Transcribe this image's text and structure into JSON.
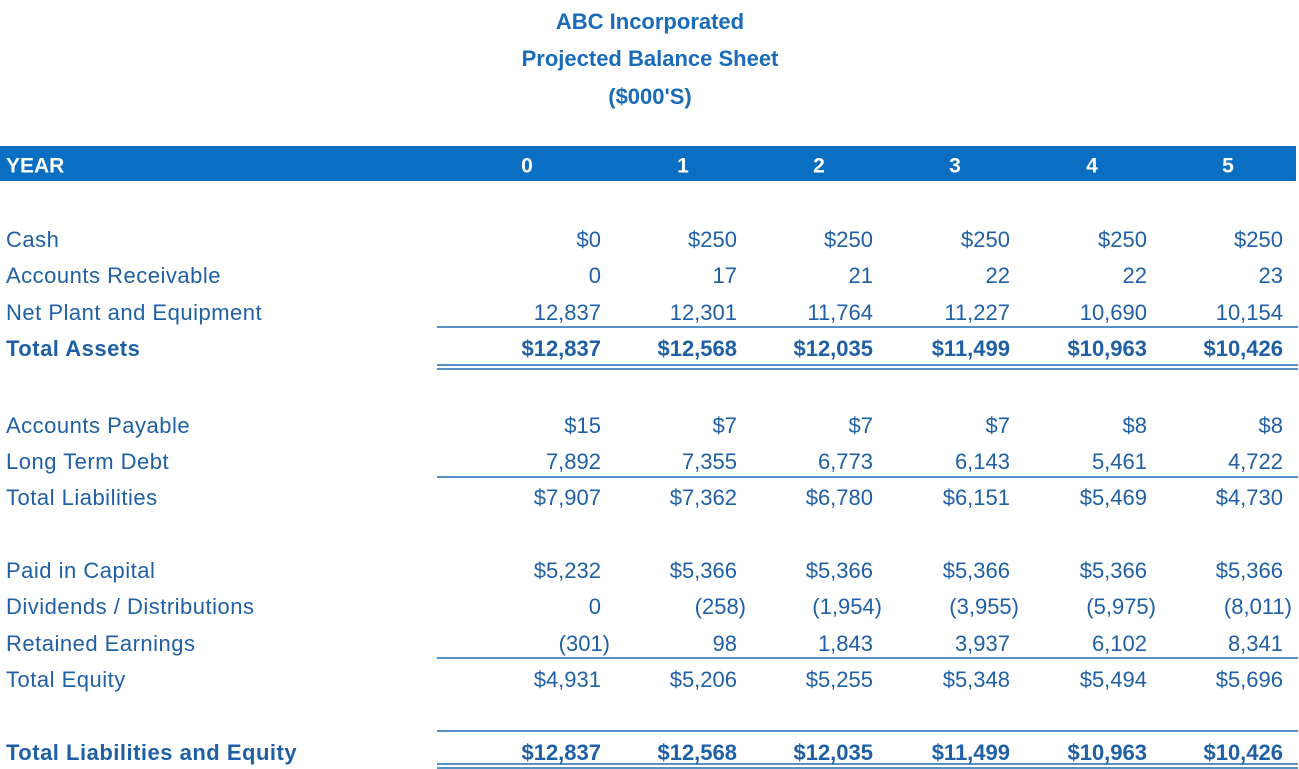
{
  "header": {
    "title": "ABC Incorporated",
    "subtitle": "Projected Balance Sheet",
    "units": "($000'S)"
  },
  "table": {
    "columns": [
      "YEAR",
      "0",
      "1",
      "2",
      "3",
      "4",
      "5"
    ],
    "rows": [
      [
        "Cash",
        "$0",
        "$250",
        "$250",
        "$250",
        "$250",
        "$250"
      ],
      [
        "Accounts Receivable",
        "0",
        "17",
        "21",
        "22",
        "22",
        "23"
      ],
      [
        "Net Plant and Equipment",
        "12,837",
        "12,301",
        "11,764",
        "11,227",
        "10,690",
        "10,154"
      ],
      [
        "Total Assets",
        "$12,837",
        "$12,568",
        "$12,035",
        "$11,499",
        "$10,963",
        "$10,426"
      ],
      [
        "Accounts Payable",
        "$15",
        "$7",
        "$7",
        "$7",
        "$8",
        "$8"
      ],
      [
        "Long Term Debt",
        "7,892",
        "7,355",
        "6,773",
        "6,143",
        "5,461",
        "4,722"
      ],
      [
        "Total Liabilities",
        "$7,907",
        "$7,362",
        "$6,780",
        "$6,151",
        "$5,469",
        "$4,730"
      ],
      [
        "Paid in Capital",
        "$5,232",
        "$5,366",
        "$5,366",
        "$5,366",
        "$5,366",
        "$5,366"
      ],
      [
        "Dividends / Distributions",
        "0",
        "(258)",
        "(1,954)",
        "(3,955)",
        "(5,975)",
        "(8,011)"
      ],
      [
        "Retained Earnings",
        "(301)",
        "98",
        "1,843",
        "3,937",
        "6,102",
        "8,341"
      ],
      [
        "Total Equity",
        "$4,931",
        "$5,206",
        "$5,255",
        "$5,348",
        "$5,494",
        "$5,696"
      ],
      [
        "Total Liabilities and Equity",
        "$12,837",
        "$12,568",
        "$12,035",
        "$11,499",
        "$10,963",
        "$10,426"
      ]
    ]
  }
}
